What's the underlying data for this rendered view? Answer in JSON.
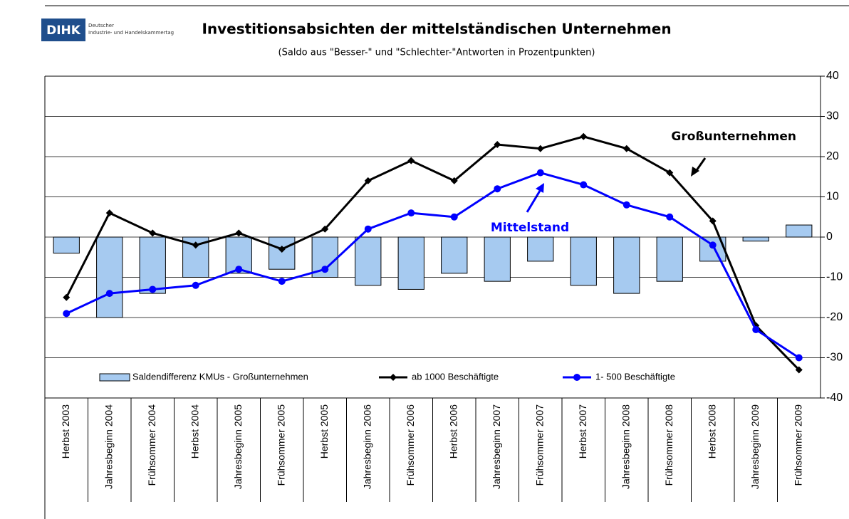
{
  "brand": {
    "logo": "DIHK",
    "line1": "Deutscher",
    "line2": "Industrie- und Handelskammertag"
  },
  "chart_data": {
    "type": "bar",
    "title": "Investitionsabsichten der mittelständischen Unternehmen",
    "subtitle": "(Saldo aus \"Besser-\" und \"Schlechter-\"Antworten in Prozentpunkten)",
    "annotations": [
      "Großunternehmen",
      "Mittelstand"
    ],
    "categories": [
      "Herbst 2003",
      "Jahresbeginn 2004",
      "Frühsommer 2004",
      "Herbst 2004",
      "Jahresbeginn 2005",
      "Frühsommer 2005",
      "Herbst 2005",
      "Jahresbeginn 2006",
      "Frühsommer 2006",
      "Herbst 2006",
      "Jahresbeginn 2007",
      "Frühsommer 2007",
      "Herbst 2007",
      "Jahresbeginn 2008",
      "Frühsommer 2008",
      "Herbst 2008",
      "Jahresbeginn 2009",
      "Frühsommer 2009"
    ],
    "series": [
      {
        "name": "Saldendifferenz KMUs - Großunternehmen",
        "type": "bar",
        "color": "#a6caf0",
        "values": [
          -4,
          -20,
          -14,
          -10,
          -9,
          -8,
          -10,
          -12,
          -13,
          -9,
          -11,
          -6,
          -12,
          -14,
          -11,
          -6,
          -1,
          3
        ]
      },
      {
        "name": "ab 1000 Beschäftigte",
        "type": "line",
        "color": "#000000",
        "marker": "diamond",
        "values": [
          -15,
          6,
          1,
          -2,
          1,
          -3,
          2,
          14,
          19,
          14,
          23,
          22,
          25,
          22,
          16,
          4,
          -22,
          -33
        ]
      },
      {
        "name": "1- 500 Beschäftigte",
        "type": "line",
        "color": "#0000ff",
        "marker": "circle",
        "values": [
          -19,
          -14,
          -13,
          -12,
          -8,
          -11,
          -8,
          2,
          6,
          5,
          12,
          16,
          13,
          8,
          5,
          -2,
          -23,
          -30
        ]
      }
    ],
    "ylim": [
      -40,
      40
    ],
    "yticks": [
      -40,
      -30,
      -20,
      -10,
      0,
      10,
      20,
      30,
      40
    ],
    "grid": true,
    "legend": "bottom"
  }
}
